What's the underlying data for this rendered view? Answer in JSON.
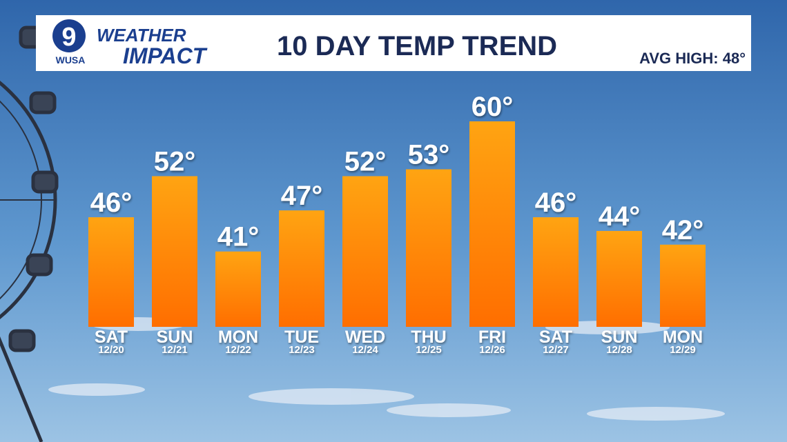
{
  "branding": {
    "channel": "9",
    "station": "WUSA",
    "line1": "WEATHER",
    "line2": "IMPACT"
  },
  "chart_data": {
    "type": "bar",
    "title": "10 DAY TEMP TREND",
    "annotation": "AVG HIGH: 48°",
    "categories": [
      "SAT",
      "SUN",
      "MON",
      "TUE",
      "WED",
      "THU",
      "FRI",
      "SAT",
      "SUN",
      "MON"
    ],
    "dates": [
      "12/20",
      "12/21",
      "12/22",
      "12/23",
      "12/24",
      "12/25",
      "12/26",
      "12/27",
      "12/28",
      "12/29"
    ],
    "values": [
      46,
      52,
      41,
      47,
      52,
      53,
      60,
      46,
      44,
      42
    ],
    "value_labels": [
      "46°",
      "52°",
      "41°",
      "47°",
      "52°",
      "53°",
      "60°",
      "46°",
      "44°",
      "42°"
    ],
    "color": "#ff8a00",
    "ylim": [
      30,
      60
    ]
  }
}
